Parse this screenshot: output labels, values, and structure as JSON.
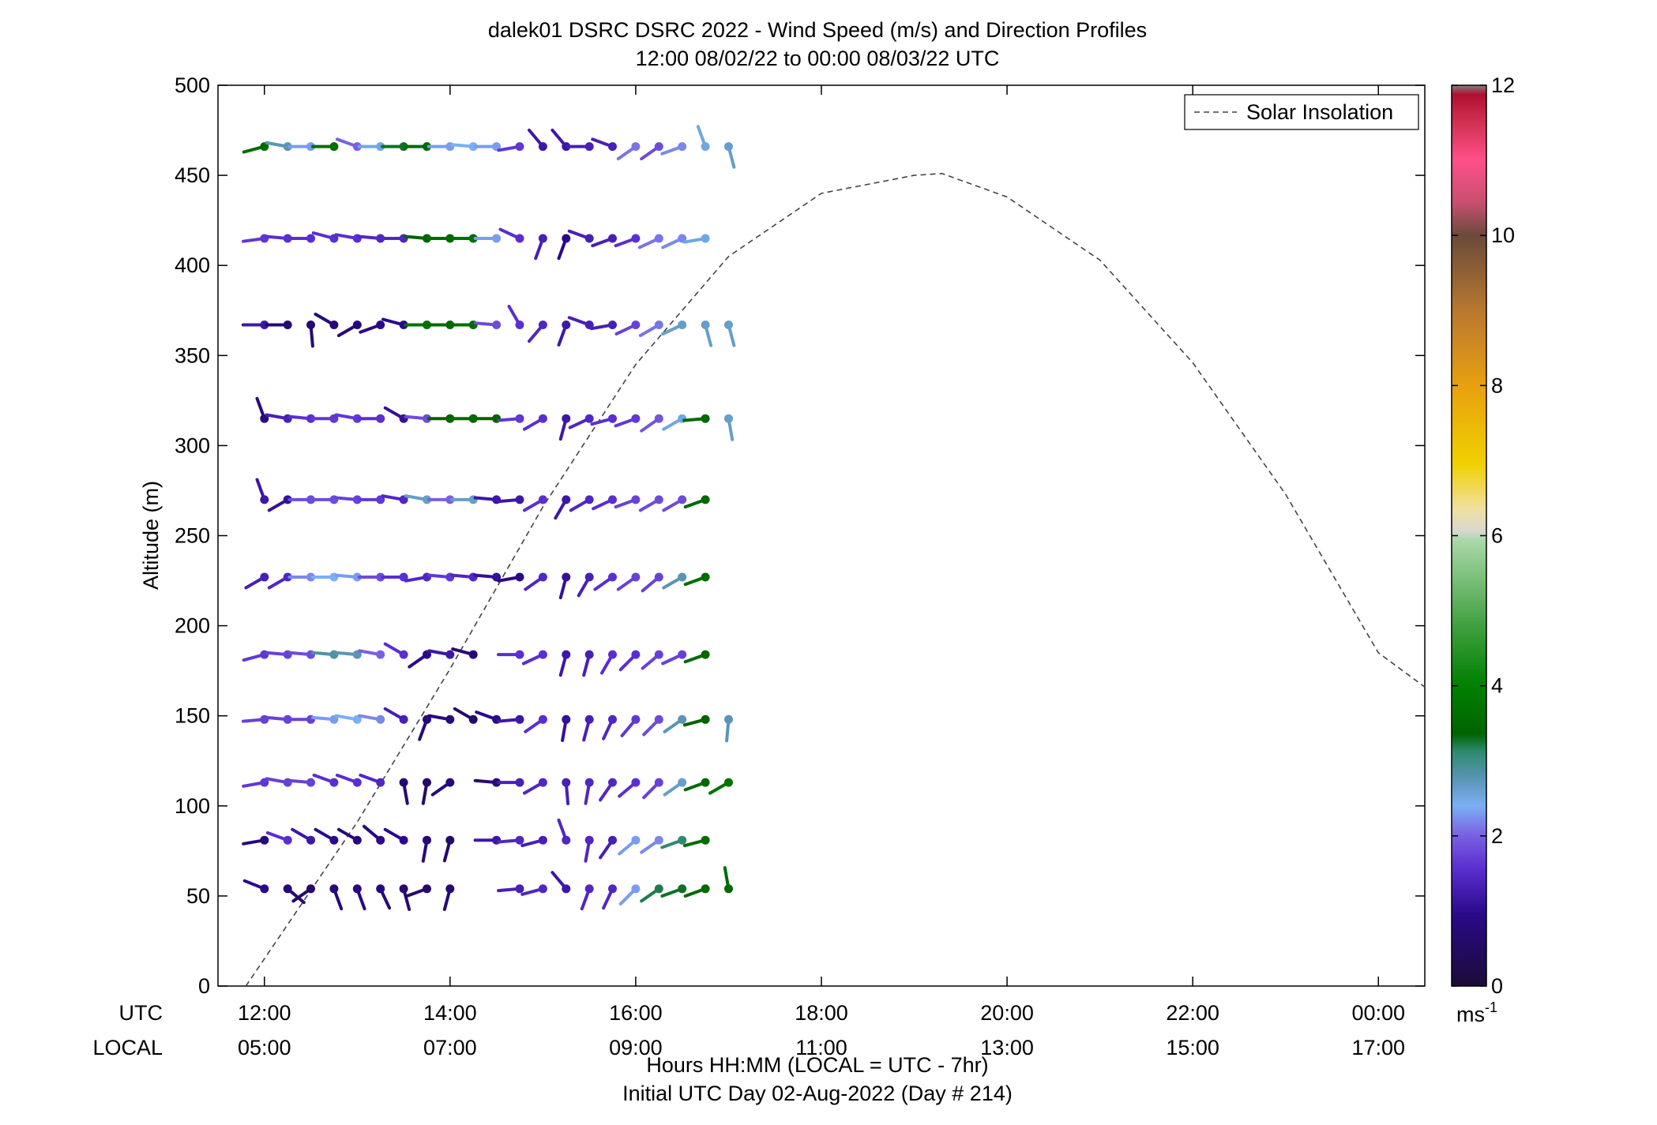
{
  "chart_data": {
    "type": "scatter",
    "title_line1": "dalek01 DSRC DSRC 2022 - Wind Speed (m/s) and Direction Profiles",
    "title_line2": "12:00 08/02/22 to 00:00 08/03/22  UTC",
    "ylabel": "Altitude (m)",
    "ylim": [
      0,
      500
    ],
    "yticks": [
      "0",
      "50",
      "100",
      "150",
      "200",
      "250",
      "300",
      "350",
      "400",
      "450",
      "500"
    ],
    "xlim_hours": [
      11.5,
      24.5
    ],
    "x_utc_labels": [
      "12:00",
      "14:00",
      "16:00",
      "18:00",
      "20:00",
      "22:00",
      "00:00"
    ],
    "x_local_labels": [
      "05:00",
      "07:00",
      "09:00",
      "11:00",
      "13:00",
      "15:00",
      "17:00"
    ],
    "utc_row_label": "UTC",
    "local_row_label": "LOCAL",
    "xlabel_line1": "Hours HH:MM  (LOCAL = UTC - 7hr)",
    "xlabel_line2": "Initial UTC Day 02-Aug-2022 (Day # 214)",
    "legend": "Solar Insolation",
    "colorbar": {
      "min": 0,
      "max": 12,
      "ticks": [
        "0",
        "2",
        "4",
        "6",
        "8",
        "10",
        "12"
      ],
      "unit_base": "ms",
      "unit_exp": "-1"
    },
    "altitudes_m": [
      54,
      81,
      113,
      148,
      184,
      227,
      270,
      315,
      367,
      415,
      466
    ],
    "solar_insolation": {
      "x": [
        11.8,
        13,
        14,
        15,
        16,
        17,
        18,
        19,
        19.3,
        20,
        21,
        22,
        23,
        24,
        24.5
      ],
      "y": [
        0,
        91,
        176,
        266,
        345,
        405,
        440,
        450,
        451,
        438,
        403,
        346,
        273,
        185,
        166
      ]
    },
    "wind_profiles": [
      {
        "time": "12:00",
        "hour": 12.0,
        "speed_ms": [
          1.0,
          0.8,
          1.6,
          1.7,
          1.6,
          1.3,
          1.2,
          0.9,
          1.2,
          1.6,
          3.6
        ],
        "dir_deg": [
          292,
          260,
          260,
          265,
          255,
          240,
          340,
          340,
          270,
          262,
          255
        ]
      },
      {
        "time": "12:15",
        "hour": 12.25,
        "speed_ms": [
          0.8,
          1.5,
          1.7,
          1.7,
          1.7,
          1.4,
          1.1,
          1.3,
          0.7,
          1.5,
          2.7
        ],
        "dir_deg": [
          130,
          290,
          280,
          275,
          275,
          240,
          240,
          280,
          270,
          275,
          280
        ]
      },
      {
        "time": "12:30",
        "hour": 12.5,
        "speed_ms": [
          0.6,
          1.2,
          1.7,
          1.7,
          1.8,
          2.2,
          1.8,
          1.5,
          0.7,
          1.5,
          2.3
        ],
        "dir_deg": [
          235,
          300,
          275,
          270,
          275,
          270,
          270,
          275,
          175,
          270,
          270
        ]
      },
      {
        "time": "12:45",
        "hour": 12.75,
        "speed_ms": [
          0.8,
          1.0,
          1.5,
          2.3,
          2.8,
          2.4,
          1.8,
          1.6,
          0.8,
          1.5,
          3.6
        ],
        "dir_deg": [
          160,
          300,
          290,
          275,
          275,
          270,
          270,
          270,
          300,
          285,
          270
        ]
      },
      {
        "time": "13:00",
        "hour": 13.0,
        "speed_ms": [
          0.9,
          0.8,
          1.5,
          2.4,
          2.7,
          2.3,
          1.7,
          1.6,
          0.8,
          1.5,
          2.0
        ],
        "dir_deg": [
          160,
          300,
          290,
          280,
          275,
          275,
          275,
          280,
          240,
          280,
          290
        ]
      },
      {
        "time": "13:15",
        "hour": 13.25,
        "speed_ms": [
          0.8,
          0.9,
          1.4,
          2.2,
          2.0,
          1.8,
          1.6,
          1.5,
          1.0,
          1.4,
          2.5
        ],
        "dir_deg": [
          155,
          310,
          290,
          280,
          280,
          270,
          270,
          270,
          250,
          275,
          270
        ]
      },
      {
        "time": "13:30",
        "hour": 13.5,
        "speed_ms": [
          0.7,
          1.0,
          0.7,
          1.3,
          1.5,
          1.5,
          1.4,
          1.1,
          1.0,
          1.4,
          3.3
        ],
        "dir_deg": [
          165,
          300,
          170,
          300,
          300,
          270,
          280,
          300,
          285,
          270,
          270
        ]
      },
      {
        "time": "13:45",
        "hour": 13.75,
        "speed_ms": [
          0.7,
          0.8,
          0.6,
          0.8,
          1.0,
          1.4,
          2.6,
          1.8,
          3.7,
          3.4,
          3.5
        ],
        "dir_deg": [
          250,
          190,
          190,
          200,
          235,
          260,
          280,
          275,
          270,
          275,
          270
        ]
      },
      {
        "time": "14:00",
        "hour": 14.0,
        "speed_ms": [
          0.7,
          0.6,
          0.8,
          0.8,
          1.2,
          1.6,
          2.0,
          3.4,
          3.5,
          3.5,
          2.3
        ],
        "dir_deg": [
          195,
          195,
          235,
          280,
          280,
          275,
          270,
          270,
          270,
          270,
          270
        ]
      },
      {
        "time": "14:15",
        "hour": 14.25,
        "speed_ms": [
          0,
          0,
          0,
          0.6,
          0.8,
          1.4,
          2.6,
          3.5,
          3.6,
          3.6,
          2.4
        ],
        "dir_deg": [
          0,
          0,
          0,
          300,
          285,
          275,
          270,
          270,
          270,
          270,
          275
        ]
      },
      {
        "time": "14:30",
        "hour": 14.5,
        "speed_ms": [
          0,
          1.2,
          0.8,
          1.0,
          0,
          1.1,
          1.2,
          3.4,
          1.8,
          2.3,
          2.3
        ],
        "dir_deg": [
          0,
          270,
          275,
          290,
          0,
          275,
          275,
          270,
          275,
          270,
          270
        ]
      },
      {
        "time": "14:45",
        "hour": 14.75,
        "speed_ms": [
          1.3,
          1.4,
          1.3,
          1.2,
          1.5,
          0.9,
          1.2,
          1.6,
          1.5,
          1.5,
          1.6
        ],
        "dir_deg": [
          265,
          265,
          270,
          265,
          270,
          260,
          265,
          265,
          330,
          295,
          260
        ]
      },
      {
        "time": "15:00",
        "hour": 15.0,
        "speed_ms": [
          1.4,
          1.3,
          1.4,
          1.5,
          1.5,
          1.4,
          1.5,
          1.5,
          1.4,
          1.3,
          1.2
        ],
        "dir_deg": [
          255,
          255,
          240,
          235,
          245,
          235,
          240,
          240,
          220,
          200,
          320
        ]
      },
      {
        "time": "15:15",
        "hour": 15.25,
        "speed_ms": [
          1.2,
          1.4,
          1.3,
          1.1,
          1.2,
          1.1,
          1.2,
          1.2,
          1.2,
          1.0,
          1.2
        ],
        "dir_deg": [
          320,
          340,
          175,
          190,
          195,
          195,
          210,
          195,
          200,
          200,
          320
        ]
      },
      {
        "time": "15:30",
        "hour": 15.5,
        "speed_ms": [
          1.4,
          1.4,
          1.4,
          1.3,
          1.3,
          1.3,
          1.4,
          1.4,
          1.3,
          1.3,
          1.3
        ],
        "dir_deg": [
          200,
          190,
          190,
          195,
          195,
          210,
          240,
          245,
          290,
          290,
          270
        ]
      },
      {
        "time": "15:45",
        "hour": 15.75,
        "speed_ms": [
          1.4,
          1.3,
          1.4,
          1.4,
          1.5,
          1.5,
          1.5,
          1.5,
          1.3,
          1.3,
          1.3
        ],
        "dir_deg": [
          205,
          215,
          215,
          205,
          210,
          235,
          245,
          255,
          260,
          250,
          290
        ]
      },
      {
        "time": "16:00",
        "hour": 16.0,
        "speed_ms": [
          2.3,
          2.3,
          1.5,
          1.6,
          1.5,
          1.7,
          1.7,
          1.6,
          1.7,
          1.5,
          2.1
        ],
        "dir_deg": [
          225,
          230,
          230,
          220,
          225,
          235,
          250,
          250,
          245,
          250,
          235
        ]
      },
      {
        "time": "16:15",
        "hour": 16.25,
        "speed_ms": [
          3.2,
          2.2,
          1.7,
          1.8,
          1.7,
          1.7,
          1.8,
          1.9,
          2.1,
          2.1,
          1.8
        ],
        "dir_deg": [
          235,
          235,
          225,
          225,
          230,
          230,
          240,
          235,
          240,
          245,
          235
        ]
      },
      {
        "time": "16:30",
        "hour": 16.5,
        "speed_ms": [
          3.3,
          3.1,
          2.6,
          2.7,
          1.7,
          2.7,
          1.8,
          2.5,
          2.6,
          2.2,
          2.2
        ],
        "dir_deg": [
          250,
          250,
          235,
          235,
          245,
          240,
          240,
          240,
          245,
          245,
          250
        ]
      },
      {
        "time": "16:45",
        "hour": 16.75,
        "speed_ms": [
          3.5,
          3.6,
          3.5,
          3.4,
          3.5,
          3.6,
          3.5,
          3.5,
          2.6,
          2.5,
          2.5
        ],
        "dir_deg": [
          250,
          255,
          250,
          255,
          250,
          250,
          250,
          265,
          165,
          260,
          340
        ]
      },
      {
        "time": "17:00",
        "hour": 17.0,
        "speed_ms": [
          3.5,
          0,
          3.7,
          2.7,
          0,
          0,
          0,
          2.6,
          2.6,
          0,
          2.6
        ],
        "dir_deg": [
          350,
          0,
          240,
          185,
          0,
          0,
          0,
          170,
          165,
          0,
          165
        ]
      }
    ]
  }
}
